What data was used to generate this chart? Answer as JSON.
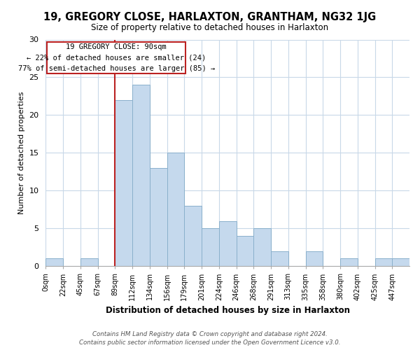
{
  "title": "19, GREGORY CLOSE, HARLAXTON, GRANTHAM, NG32 1JG",
  "subtitle": "Size of property relative to detached houses in Harlaxton",
  "xlabel": "Distribution of detached houses by size in Harlaxton",
  "ylabel": "Number of detached properties",
  "footer_line1": "Contains HM Land Registry data © Crown copyright and database right 2024.",
  "footer_line2": "Contains public sector information licensed under the Open Government Licence v3.0.",
  "bin_labels": [
    "0sqm",
    "22sqm",
    "45sqm",
    "67sqm",
    "89sqm",
    "112sqm",
    "134sqm",
    "156sqm",
    "179sqm",
    "201sqm",
    "224sqm",
    "246sqm",
    "268sqm",
    "291sqm",
    "313sqm",
    "335sqm",
    "358sqm",
    "380sqm",
    "402sqm",
    "425sqm",
    "447sqm"
  ],
  "bar_values": [
    1,
    0,
    1,
    0,
    22,
    24,
    13,
    15,
    8,
    5,
    6,
    4,
    5,
    2,
    0,
    2,
    0,
    1,
    0,
    1,
    1
  ],
  "bar_color": "#c5d9ed",
  "bar_edge_color": "#8ab0cc",
  "ylim": [
    0,
    30
  ],
  "yticks": [
    0,
    5,
    10,
    15,
    20,
    25,
    30
  ],
  "vline_x": 4,
  "annotation_title": "19 GREGORY CLOSE: 90sqm",
  "annotation_line2": "← 22% of detached houses are smaller (24)",
  "annotation_line3": "77% of semi-detached houses are larger (85) →",
  "annotation_box_color": "#bb2222",
  "vline_color": "#bb2222",
  "background_color": "#ffffff",
  "grid_color": "#c8d8e8"
}
